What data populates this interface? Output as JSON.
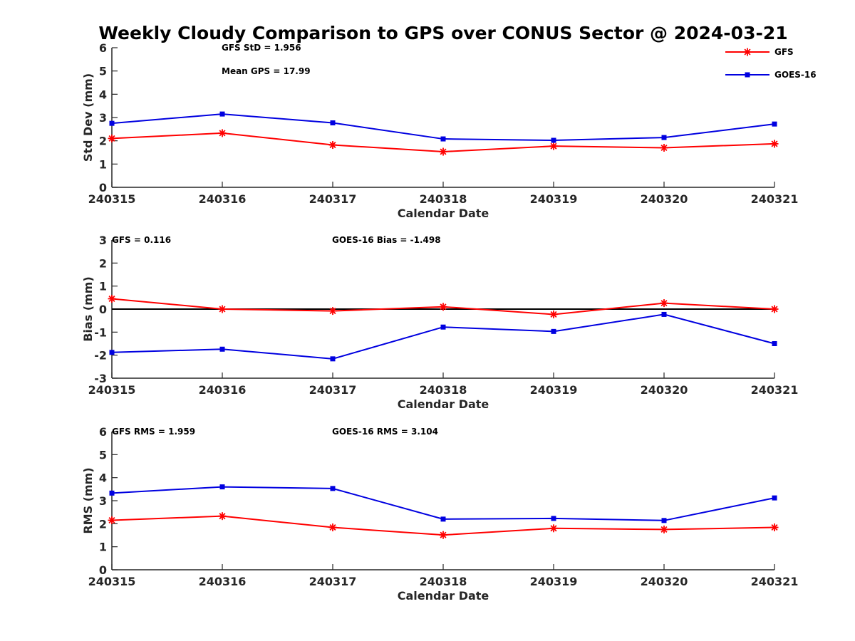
{
  "figure_title": "Weekly Cloudy Comparison to GPS over CONUS Sector @ 2024-03-21",
  "colors": {
    "GFS": "#ff0000",
    "GOES-16": "#0000e0",
    "axis": "#262626",
    "zero_line": "#000000"
  },
  "chart_data": [
    {
      "type": "line",
      "categories": [
        "240315",
        "240316",
        "240317",
        "240318",
        "240319",
        "240320",
        "240321"
      ],
      "xlabel": "Calendar Date",
      "ylabel": "Std Dev (mm)",
      "ylim": [
        0,
        6
      ],
      "yticks": [
        0,
        1,
        2,
        3,
        4,
        5,
        6
      ],
      "grid": false,
      "legend": "top-right",
      "series": [
        {
          "name": "GFS",
          "marker": "asterisk",
          "values": [
            2.1,
            2.33,
            1.82,
            1.53,
            1.77,
            1.7,
            1.87
          ]
        },
        {
          "name": "GOES-16",
          "marker": "square",
          "values": [
            2.75,
            3.15,
            2.77,
            2.08,
            2.02,
            2.14,
            2.72
          ]
        }
      ],
      "annotations": [
        {
          "id": "gfs_std",
          "text": "GFS StD = 1.956"
        },
        {
          "id": "mean_gps",
          "text": "Mean GPS = 17.99"
        }
      ]
    },
    {
      "type": "line",
      "categories": [
        "240315",
        "240316",
        "240317",
        "240318",
        "240319",
        "240320",
        "240321"
      ],
      "xlabel": "Calendar Date",
      "ylabel": "Bias (mm)",
      "ylim": [
        -3,
        3
      ],
      "yticks": [
        -3,
        -2,
        -1,
        0,
        1,
        2,
        3
      ],
      "grid": false,
      "zero_line": true,
      "series": [
        {
          "name": "GFS",
          "marker": "asterisk",
          "values": [
            0.45,
            0.0,
            -0.08,
            0.1,
            -0.23,
            0.26,
            0.0
          ]
        },
        {
          "name": "GOES-16",
          "marker": "square",
          "values": [
            -1.88,
            -1.74,
            -2.16,
            -0.78,
            -0.97,
            -0.23,
            -1.5
          ]
        }
      ],
      "annotations": [
        {
          "id": "gfs_bias",
          "text": "GFS = 0.116"
        },
        {
          "id": "goes_bias",
          "text": "GOES-16 Bias  = -1.498"
        }
      ]
    },
    {
      "type": "line",
      "categories": [
        "240315",
        "240316",
        "240317",
        "240318",
        "240319",
        "240320",
        "240321"
      ],
      "xlabel": "Calendar Date",
      "ylabel": "RMS (mm)",
      "ylim": [
        0,
        6
      ],
      "yticks": [
        0,
        1,
        2,
        3,
        4,
        5,
        6
      ],
      "grid": false,
      "series": [
        {
          "name": "GFS",
          "marker": "asterisk",
          "values": [
            2.15,
            2.33,
            1.84,
            1.51,
            1.8,
            1.75,
            1.84
          ]
        },
        {
          "name": "GOES-16",
          "marker": "square",
          "values": [
            3.33,
            3.6,
            3.53,
            2.2,
            2.23,
            2.14,
            3.12
          ]
        }
      ],
      "annotations": [
        {
          "id": "gfs_rms",
          "text": "GFS RMS = 1.959"
        },
        {
          "id": "goes_rms",
          "text": "GOES-16 RMS = 3.104"
        }
      ]
    }
  ]
}
